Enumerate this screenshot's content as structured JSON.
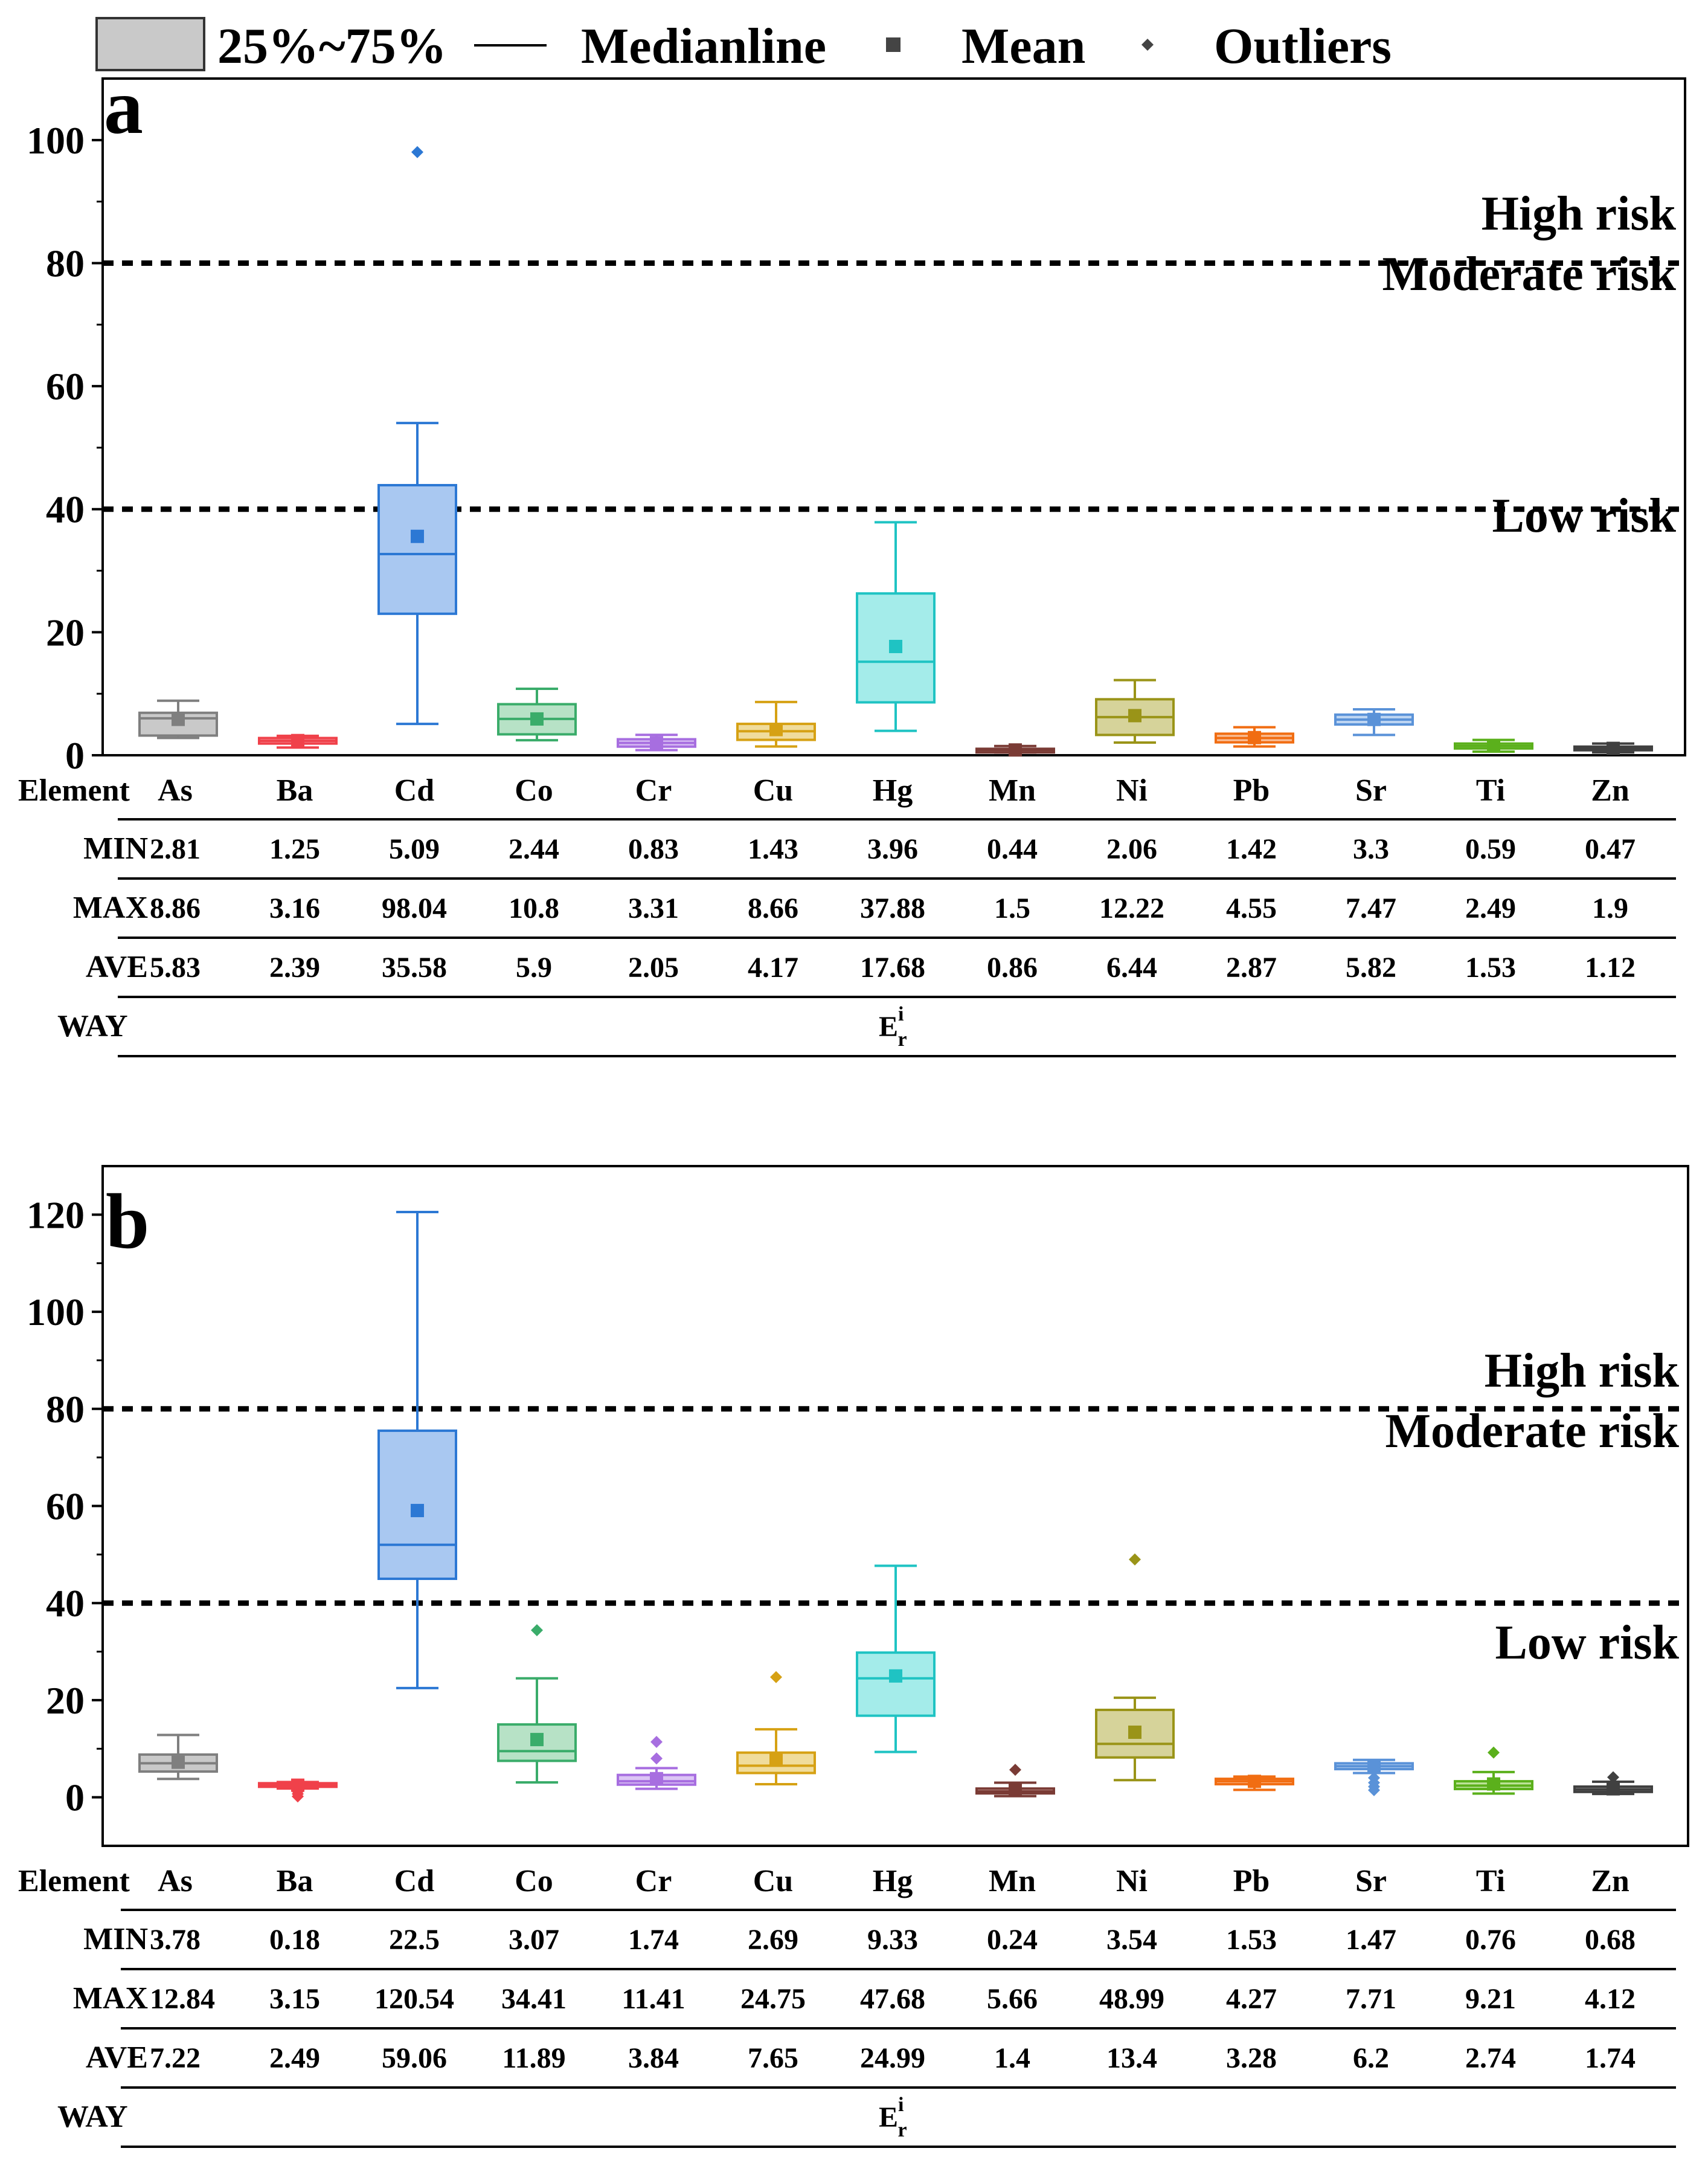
{
  "legend": {
    "box_label": "25%~75%",
    "median_label": "Medianline",
    "mean_label": "Mean",
    "outlier_label": "Outliers"
  },
  "chart_data": [
    {
      "panel": "a",
      "type": "box",
      "ylim": [
        0,
        110
      ],
      "yticks": [
        0,
        20,
        40,
        60,
        80,
        100
      ],
      "ytick_labels": [
        "0",
        "20",
        "40",
        "60",
        "80",
        "100"
      ],
      "thresholds": [
        40,
        80
      ],
      "risk_labels": {
        "high": "High risk",
        "moderate": "Moderate risk",
        "low": "Low risk"
      },
      "table": {
        "header_label": "Element",
        "min_label": "MIN",
        "max_label": "MAX",
        "ave_label": "AVE",
        "way_label": "WAY",
        "way_value": "E",
        "way_sup": "i",
        "way_sub": "r"
      },
      "elements": [
        {
          "name": "As",
          "color": "#7f7f7f",
          "fill": "#c9c9c9",
          "min": "2.81",
          "max": "8.86",
          "ave": "5.83",
          "q1": 3.2,
          "median": 6.0,
          "q3": 6.9,
          "wlo": 2.81,
          "whi": 8.86,
          "outliers": []
        },
        {
          "name": "Ba",
          "color": "#f0414a",
          "fill": "#f8a5a8",
          "min": "1.25",
          "max": "3.16",
          "ave": "2.39",
          "q1": 1.9,
          "median": 2.35,
          "q3": 2.8,
          "wlo": 1.25,
          "whi": 3.16,
          "outliers": []
        },
        {
          "name": "Cd",
          "color": "#2c78d4",
          "fill": "#a9c8f1",
          "min": "5.09",
          "max": "98.04",
          "ave": "35.58",
          "q1": 23.0,
          "median": 32.7,
          "q3": 43.9,
          "wlo": 5.09,
          "whi": 54.0,
          "outliers": [
            98.04
          ]
        },
        {
          "name": "Co",
          "color": "#3aac6a",
          "fill": "#b7e2c6",
          "min": "2.44",
          "max": "10.8",
          "ave": "5.9",
          "q1": 3.4,
          "median": 5.9,
          "q3": 8.3,
          "wlo": 2.44,
          "whi": 10.8,
          "outliers": []
        },
        {
          "name": "Cr",
          "color": "#a76ee0",
          "fill": "#dcc5f5",
          "min": "0.83",
          "max": "3.31",
          "ave": "2.05",
          "q1": 1.4,
          "median": 2.0,
          "q3": 2.6,
          "wlo": 0.83,
          "whi": 3.31,
          "outliers": []
        },
        {
          "name": "Cu",
          "color": "#d6a114",
          "fill": "#f0dc9c",
          "min": "1.43",
          "max": "8.66",
          "ave": "4.17",
          "q1": 2.5,
          "median": 3.9,
          "q3": 5.1,
          "wlo": 1.43,
          "whi": 8.66,
          "outliers": []
        },
        {
          "name": "Hg",
          "color": "#1fc3c3",
          "fill": "#a4ecea",
          "min": "3.96",
          "max": "37.88",
          "ave": "17.68",
          "q1": 8.6,
          "median": 15.2,
          "q3": 26.3,
          "wlo": 3.96,
          "whi": 37.88,
          "outliers": []
        },
        {
          "name": "Mn",
          "color": "#7a3b35",
          "fill": "#c79a94",
          "min": "0.44",
          "max": "1.5",
          "ave": "0.86",
          "q1": 0.6,
          "median": 0.85,
          "q3": 1.05,
          "wlo": 0.44,
          "whi": 1.5,
          "outliers": []
        },
        {
          "name": "Ni",
          "color": "#9a9418",
          "fill": "#d6d39a",
          "min": "2.06",
          "max": "12.22",
          "ave": "6.44",
          "q1": 3.3,
          "median": 6.2,
          "q3": 9.1,
          "wlo": 2.06,
          "whi": 12.22,
          "outliers": []
        },
        {
          "name": "Pb",
          "color": "#f16d12",
          "fill": "#f9c09a",
          "min": "1.42",
          "max": "4.55",
          "ave": "2.87",
          "q1": 2.1,
          "median": 2.8,
          "q3": 3.5,
          "wlo": 1.42,
          "whi": 4.55,
          "outliers": []
        },
        {
          "name": "Sr",
          "color": "#5a92d8",
          "fill": "#bcd4f2",
          "min": "3.3",
          "max": "7.47",
          "ave": "5.82",
          "q1": 5.0,
          "median": 5.8,
          "q3": 6.6,
          "wlo": 3.3,
          "whi": 7.47,
          "outliers": []
        },
        {
          "name": "Ti",
          "color": "#5bb01c",
          "fill": "#bde39a",
          "min": "0.59",
          "max": "2.49",
          "ave": "1.53",
          "q1": 1.1,
          "median": 1.5,
          "q3": 1.9,
          "wlo": 0.59,
          "whi": 2.49,
          "outliers": []
        },
        {
          "name": "Zn",
          "color": "#404040",
          "fill": "#8a8a8a",
          "min": "0.47",
          "max": "1.9",
          "ave": "1.12",
          "q1": 0.85,
          "median": 1.1,
          "q3": 1.4,
          "wlo": 0.47,
          "whi": 1.9,
          "outliers": []
        }
      ]
    },
    {
      "panel": "b",
      "type": "box",
      "ylim": [
        -10,
        130
      ],
      "yticks": [
        0,
        20,
        40,
        60,
        80,
        100,
        120
      ],
      "ytick_labels": [
        "0",
        "20",
        "40",
        "60",
        "80",
        "100",
        "120"
      ],
      "thresholds": [
        40,
        80
      ],
      "risk_labels": {
        "high": "High risk",
        "moderate": "Moderate risk",
        "low": "Low risk"
      },
      "table": {
        "header_label": "Element",
        "min_label": "MIN",
        "max_label": "MAX",
        "ave_label": "AVE",
        "way_label": "WAY",
        "way_value": "E",
        "way_sup": "i",
        "way_sub": "r"
      },
      "elements": [
        {
          "name": "As",
          "color": "#7f7f7f",
          "fill": "#c9c9c9",
          "min": "3.78",
          "max": "12.84",
          "ave": "7.22",
          "q1": 5.3,
          "median": 7.0,
          "q3": 8.8,
          "wlo": 3.78,
          "whi": 12.84,
          "outliers": []
        },
        {
          "name": "Ba",
          "color": "#f0414a",
          "fill": "#f8a5a8",
          "min": "0.18",
          "max": "3.15",
          "ave": "2.49",
          "q1": 2.3,
          "median": 2.6,
          "q3": 2.9,
          "wlo": 1.8,
          "whi": 3.15,
          "outliers": [
            1.2,
            0.7,
            0.18
          ]
        },
        {
          "name": "Cd",
          "color": "#2c78d4",
          "fill": "#a9c8f1",
          "min": "22.5",
          "max": "120.54",
          "ave": "59.06",
          "q1": 45.0,
          "median": 52.0,
          "q3": 75.5,
          "wlo": 22.5,
          "whi": 120.54,
          "outliers": []
        },
        {
          "name": "Co",
          "color": "#3aac6a",
          "fill": "#b7e2c6",
          "min": "3.07",
          "max": "34.41",
          "ave": "11.89",
          "q1": 7.5,
          "median": 9.5,
          "q3": 15.0,
          "wlo": 3.07,
          "whi": 24.5,
          "outliers": [
            34.41
          ]
        },
        {
          "name": "Cr",
          "color": "#a76ee0",
          "fill": "#dcc5f5",
          "min": "1.74",
          "max": "11.41",
          "ave": "3.84",
          "q1": 2.6,
          "median": 3.3,
          "q3": 4.6,
          "wlo": 1.74,
          "whi": 6.0,
          "outliers": [
            8.0,
            11.41
          ]
        },
        {
          "name": "Cu",
          "color": "#d6a114",
          "fill": "#f0dc9c",
          "min": "2.69",
          "max": "24.75",
          "ave": "7.65",
          "q1": 5.0,
          "median": 6.5,
          "q3": 9.2,
          "wlo": 2.69,
          "whi": 14.0,
          "outliers": [
            24.75
          ]
        },
        {
          "name": "Hg",
          "color": "#1fc3c3",
          "fill": "#a4ecea",
          "min": "9.33",
          "max": "47.68",
          "ave": "24.99",
          "q1": 16.8,
          "median": 24.5,
          "q3": 29.8,
          "wlo": 9.33,
          "whi": 47.68,
          "outliers": []
        },
        {
          "name": "Mn",
          "color": "#7a3b35",
          "fill": "#c79a94",
          "min": "0.24",
          "max": "5.66",
          "ave": "1.4",
          "q1": 0.8,
          "median": 1.2,
          "q3": 1.8,
          "wlo": 0.24,
          "whi": 3.0,
          "outliers": [
            5.66
          ]
        },
        {
          "name": "Ni",
          "color": "#9a9418",
          "fill": "#d6d39a",
          "min": "3.54",
          "max": "48.99",
          "ave": "13.4",
          "q1": 8.2,
          "median": 11.0,
          "q3": 18.0,
          "wlo": 3.54,
          "whi": 20.5,
          "outliers": [
            48.99
          ]
        },
        {
          "name": "Pb",
          "color": "#f16d12",
          "fill": "#f9c09a",
          "min": "1.53",
          "max": "4.27",
          "ave": "3.28",
          "q1": 2.7,
          "median": 3.3,
          "q3": 3.8,
          "wlo": 1.53,
          "whi": 4.27,
          "outliers": []
        },
        {
          "name": "Sr",
          "color": "#5a92d8",
          "fill": "#bcd4f2",
          "min": "1.47",
          "max": "7.71",
          "ave": "6.2",
          "q1": 5.8,
          "median": 6.4,
          "q3": 7.0,
          "wlo": 5.0,
          "whi": 7.71,
          "outliers": [
            4.0,
            3.0,
            2.2,
            1.47
          ]
        },
        {
          "name": "Ti",
          "color": "#5bb01c",
          "fill": "#bde39a",
          "min": "0.76",
          "max": "9.21",
          "ave": "2.74",
          "q1": 1.7,
          "median": 2.4,
          "q3": 3.3,
          "wlo": 0.76,
          "whi": 5.2,
          "outliers": [
            9.21
          ]
        },
        {
          "name": "Zn",
          "color": "#404040",
          "fill": "#8a8a8a",
          "min": "0.68",
          "max": "4.12",
          "ave": "1.74",
          "q1": 1.1,
          "median": 1.6,
          "q3": 2.2,
          "wlo": 0.68,
          "whi": 3.2,
          "outliers": [
            4.12
          ]
        }
      ]
    }
  ]
}
